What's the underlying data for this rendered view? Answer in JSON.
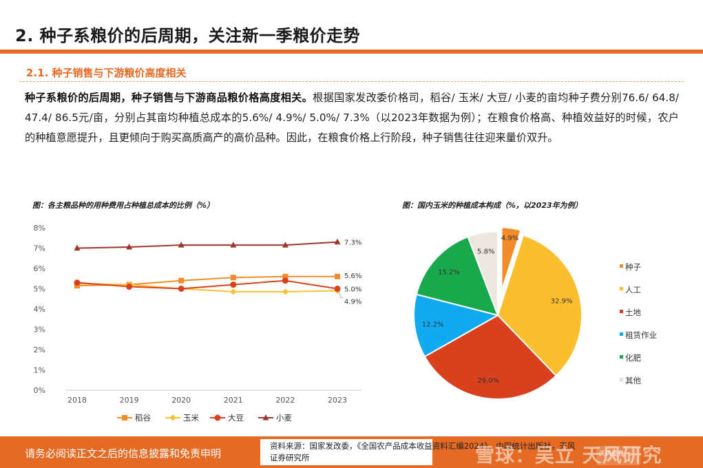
{
  "header": {
    "title": "2. 种子系粮价的后周期，关注新一季粮价走势"
  },
  "section": {
    "title": "2.1. 种子销售与下游粮价高度相关",
    "lead": "种子系粮价的后周期，种子销售与下游商品粮价格高度相关。",
    "body": "根据国家发改委价格司，稻谷/ 玉米/ 大豆/ 小麦的亩均种子费分别76.6/ 64.8/ 47.4/ 86.5元/亩，分别占其亩均种植总成本的5.6%/ 4.9%/ 5.0%/ 7.3%（以2023年数据为例）；在粮食价格高、种植效益好的时候，农户的种植意愿提升，且更倾向于购买高质高产的高价品种。因此，在粮食价格上行阶段，种子销售往往迎来量价双升。"
  },
  "chart_data": [
    {
      "type": "line",
      "title": "图：各主粮品种的用种费用占种植总成本的比例（%）",
      "x": [
        "2018",
        "2019",
        "2020",
        "2021",
        "2022",
        "2023"
      ],
      "ylim": [
        0,
        8
      ],
      "yticks": [
        "0%",
        "1%",
        "2%",
        "3%",
        "4%",
        "5%",
        "6%",
        "7%",
        "8%"
      ],
      "grid": false,
      "legend_position": "bottom",
      "series": [
        {
          "name": "稻谷",
          "values": [
            5.15,
            5.2,
            5.4,
            5.55,
            5.6,
            5.6
          ],
          "color": "#f28c28",
          "marker": "square",
          "end_label": "5.6%"
        },
        {
          "name": "玉米",
          "values": [
            5.25,
            5.2,
            5.0,
            4.85,
            4.85,
            4.9
          ],
          "color": "#fbc02d",
          "marker": "diamond",
          "end_label": "4.9%"
        },
        {
          "name": "大豆",
          "values": [
            5.3,
            5.1,
            5.0,
            5.2,
            5.4,
            5.0
          ],
          "color": "#d9411e",
          "marker": "circle",
          "end_label": "5.0%"
        },
        {
          "name": "小麦",
          "values": [
            7.0,
            7.05,
            7.15,
            7.15,
            7.15,
            7.3
          ],
          "color": "#a0342a",
          "marker": "triangle",
          "end_label": "7.3%"
        }
      ]
    },
    {
      "type": "pie",
      "title": "图：国内玉米的种植成本构成（%，以2023年为例）",
      "labels": [
        "种子",
        "人工",
        "土地",
        "租赁作业",
        "化肥",
        "其他"
      ],
      "values": [
        4.9,
        32.9,
        29.0,
        12.2,
        15.2,
        5.8
      ],
      "value_labels": [
        "4.9%",
        "32.9%",
        "29.0%",
        "12.2%",
        "15.2%",
        "5.8%"
      ],
      "colors": [
        "#f28c28",
        "#fbbf2e",
        "#d9411e",
        "#10aaf0",
        "#19a94c",
        "#ece8e0"
      ],
      "exploded": "种子",
      "legend_position": "right"
    }
  ],
  "footer": {
    "disclaimer": "请务必阅读正文之后的信息披露和免责申明",
    "source": "资料来源：国家发改委，《全国农产品成本收益资料汇编2024》，中国统计出版社，天风证券研究所",
    "watermark": "雪球：吴立 天风研究",
    "logo": "天风证券"
  }
}
